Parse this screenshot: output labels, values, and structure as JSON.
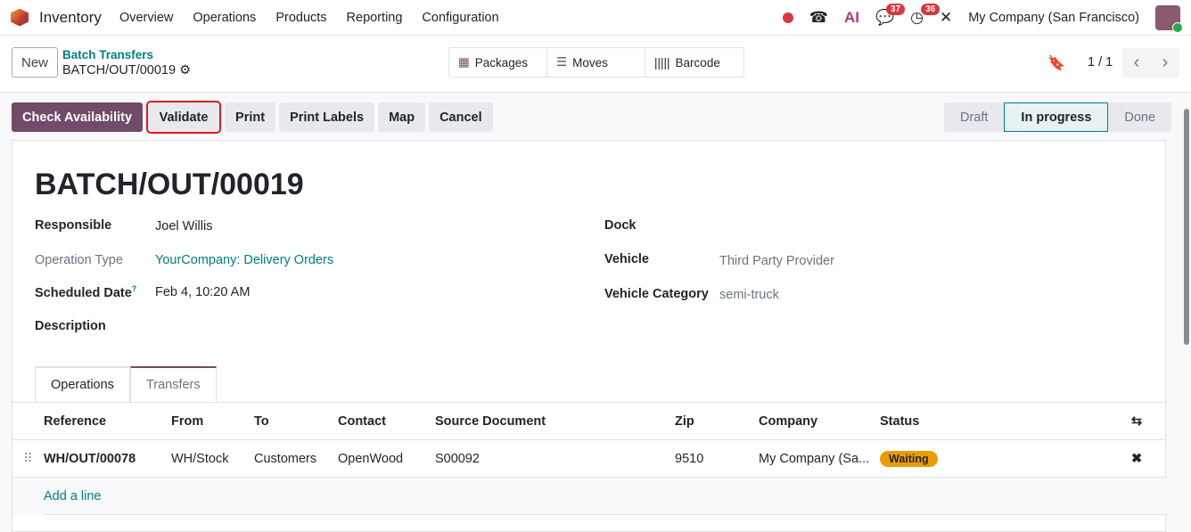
{
  "nav": {
    "app": "Inventory",
    "menu": [
      "Overview",
      "Operations",
      "Products",
      "Reporting",
      "Configuration"
    ],
    "messages_count": "37",
    "activities_count": "36",
    "company": "My Company (San Francisco)"
  },
  "control": {
    "new": "New",
    "breadcrumb_parent": "Batch Transfers",
    "breadcrumb_current": "BATCH/OUT/00019",
    "smart_buttons": [
      "Packages",
      "Moves",
      "Barcode"
    ],
    "pager": "1 / 1"
  },
  "actions": [
    "Check Availability",
    "Validate",
    "Print",
    "Print Labels",
    "Map",
    "Cancel"
  ],
  "statusbar": [
    "Draft",
    "In progress",
    "Done"
  ],
  "form": {
    "title": "BATCH/OUT/00019",
    "left": [
      {
        "label": "Responsible",
        "value": "Joel Willis"
      },
      {
        "label": "Operation Type",
        "value": "YourCompany: Delivery Orders"
      },
      {
        "label": "Scheduled Date",
        "value": "Feb 4, 10:20 AM",
        "help": "?"
      },
      {
        "label": "Description",
        "value": ""
      }
    ],
    "right": [
      {
        "label": "Dock",
        "value": ""
      },
      {
        "label": "Vehicle",
        "value": "Third Party Provider"
      },
      {
        "label": "Vehicle Category",
        "value": "semi-truck"
      }
    ]
  },
  "tabs": [
    "Operations",
    "Transfers"
  ],
  "table": {
    "columns": [
      "Reference",
      "From",
      "To",
      "Contact",
      "Source Document",
      "Zip",
      "Company",
      "Status"
    ],
    "rows": [
      {
        "reference": "WH/OUT/00078",
        "from": "WH/Stock",
        "to": "Customers",
        "contact": "OpenWood",
        "source": "S00092",
        "zip": "9510",
        "company": "My Company (Sa...",
        "status": "Waiting"
      }
    ],
    "add_line": "Add a line"
  },
  "colors": {
    "primary": "#714b67",
    "link": "#017e84",
    "waiting": "#e99d00",
    "badge": "#d9363e"
  }
}
